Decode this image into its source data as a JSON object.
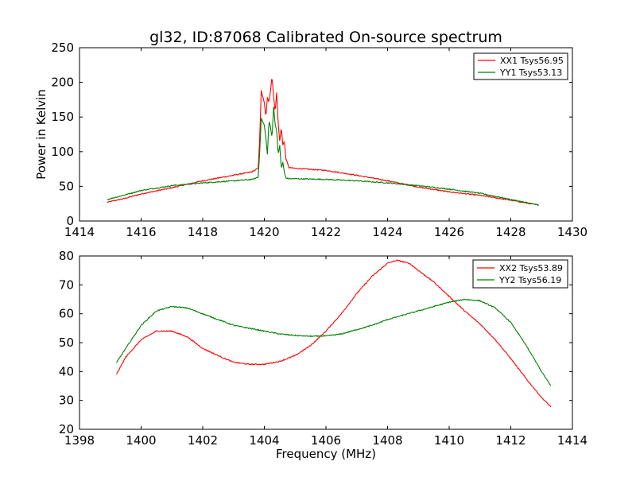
{
  "title": "gl32, ID:87068 Calibrated On-source spectrum",
  "chart_data": [
    {
      "type": "line",
      "ylabel": "Power in Kelvin",
      "xlabel": "",
      "xlim": [
        1414,
        1430
      ],
      "ylim": [
        0,
        250
      ],
      "xticks": [
        1414,
        1416,
        1418,
        1420,
        1422,
        1424,
        1426,
        1428,
        1430
      ],
      "yticks": [
        0,
        50,
        100,
        150,
        200,
        250
      ],
      "grid": false,
      "legend": "top-right",
      "series": [
        {
          "name": "XX1 Tsys56.95",
          "color": "#ff0000",
          "x": [
            1414.9,
            1415.5,
            1416.0,
            1417.0,
            1418.0,
            1419.0,
            1419.6,
            1419.8,
            1419.85,
            1419.9,
            1420.0,
            1420.05,
            1420.1,
            1420.15,
            1420.2,
            1420.25,
            1420.3,
            1420.35,
            1420.4,
            1420.45,
            1420.5,
            1420.55,
            1420.6,
            1420.65,
            1420.7,
            1420.8,
            1421.0,
            1422.0,
            1423.0,
            1424.0,
            1425.0,
            1426.0,
            1427.0,
            1428.0,
            1428.9
          ],
          "y": [
            27,
            33,
            39,
            48,
            58,
            66,
            71,
            76,
            120,
            188,
            170,
            150,
            178,
            172,
            188,
            209,
            180,
            158,
            185,
            140,
            115,
            135,
            110,
            115,
            90,
            77,
            76,
            73,
            66,
            58,
            49,
            42,
            37,
            30,
            23
          ]
        },
        {
          "name": "YY1 Tsys53.13",
          "color": "#008000",
          "x": [
            1414.9,
            1415.5,
            1416.0,
            1417.0,
            1418.0,
            1419.0,
            1419.6,
            1419.8,
            1419.85,
            1419.9,
            1420.0,
            1420.05,
            1420.1,
            1420.15,
            1420.2,
            1420.25,
            1420.3,
            1420.35,
            1420.4,
            1420.45,
            1420.5,
            1420.55,
            1420.6,
            1420.65,
            1420.7,
            1420.8,
            1421.0,
            1422.0,
            1423.0,
            1424.0,
            1425.0,
            1426.0,
            1427.0,
            1428.0,
            1428.9
          ],
          "y": [
            31,
            38,
            44,
            51,
            55,
            58,
            60,
            63,
            100,
            148,
            138,
            120,
            96,
            145,
            135,
            120,
            165,
            140,
            130,
            95,
            110,
            75,
            85,
            70,
            62,
            61,
            61,
            60,
            58,
            55,
            51,
            46,
            40,
            31,
            23
          ]
        }
      ]
    },
    {
      "type": "line",
      "ylabel": "",
      "xlabel": "Frequency (MHz)",
      "xlim": [
        1398,
        1414
      ],
      "ylim": [
        20,
        80
      ],
      "xticks": [
        1398,
        1400,
        1402,
        1404,
        1406,
        1408,
        1410,
        1412,
        1414
      ],
      "yticks": [
        20,
        30,
        40,
        50,
        60,
        70,
        80
      ],
      "grid": false,
      "legend": "top-right",
      "series": [
        {
          "name": "XX2 Tsys53.89",
          "color": "#ff0000",
          "x": [
            1399.2,
            1399.5,
            1400.0,
            1400.5,
            1401.0,
            1401.5,
            1402.0,
            1402.5,
            1403.0,
            1403.5,
            1404.0,
            1404.5,
            1405.0,
            1405.5,
            1406.0,
            1406.5,
            1407.0,
            1407.5,
            1408.0,
            1408.3,
            1408.7,
            1409.0,
            1409.5,
            1410.0,
            1410.5,
            1411.0,
            1411.5,
            1412.0,
            1412.5,
            1413.0,
            1413.3
          ],
          "y": [
            39,
            45,
            51,
            54,
            54,
            52,
            48,
            45.5,
            43.2,
            42.5,
            42.5,
            43.5,
            45.5,
            49,
            54,
            60,
            67,
            73,
            77.5,
            78.5,
            77.5,
            75,
            71,
            66,
            61,
            56.5,
            51,
            44.5,
            37.5,
            31,
            27.8
          ]
        },
        {
          "name": "YY2 Tsys56.19",
          "color": "#008000",
          "x": [
            1399.2,
            1399.5,
            1400.0,
            1400.5,
            1401.0,
            1401.5,
            1402.0,
            1402.5,
            1403.0,
            1403.5,
            1404.0,
            1404.5,
            1405.0,
            1405.5,
            1406.0,
            1406.5,
            1407.0,
            1407.5,
            1408.0,
            1408.5,
            1409.0,
            1409.5,
            1410.0,
            1410.5,
            1411.0,
            1411.5,
            1412.0,
            1412.5,
            1413.0,
            1413.3
          ],
          "y": [
            43,
            48,
            56,
            61,
            62.5,
            62,
            60,
            58,
            56,
            55,
            54,
            53,
            52.5,
            52.2,
            52.3,
            53,
            54.5,
            56,
            58,
            59.5,
            61,
            62.5,
            64,
            65,
            64.5,
            62,
            57,
            49,
            40,
            35
          ]
        }
      ]
    }
  ]
}
